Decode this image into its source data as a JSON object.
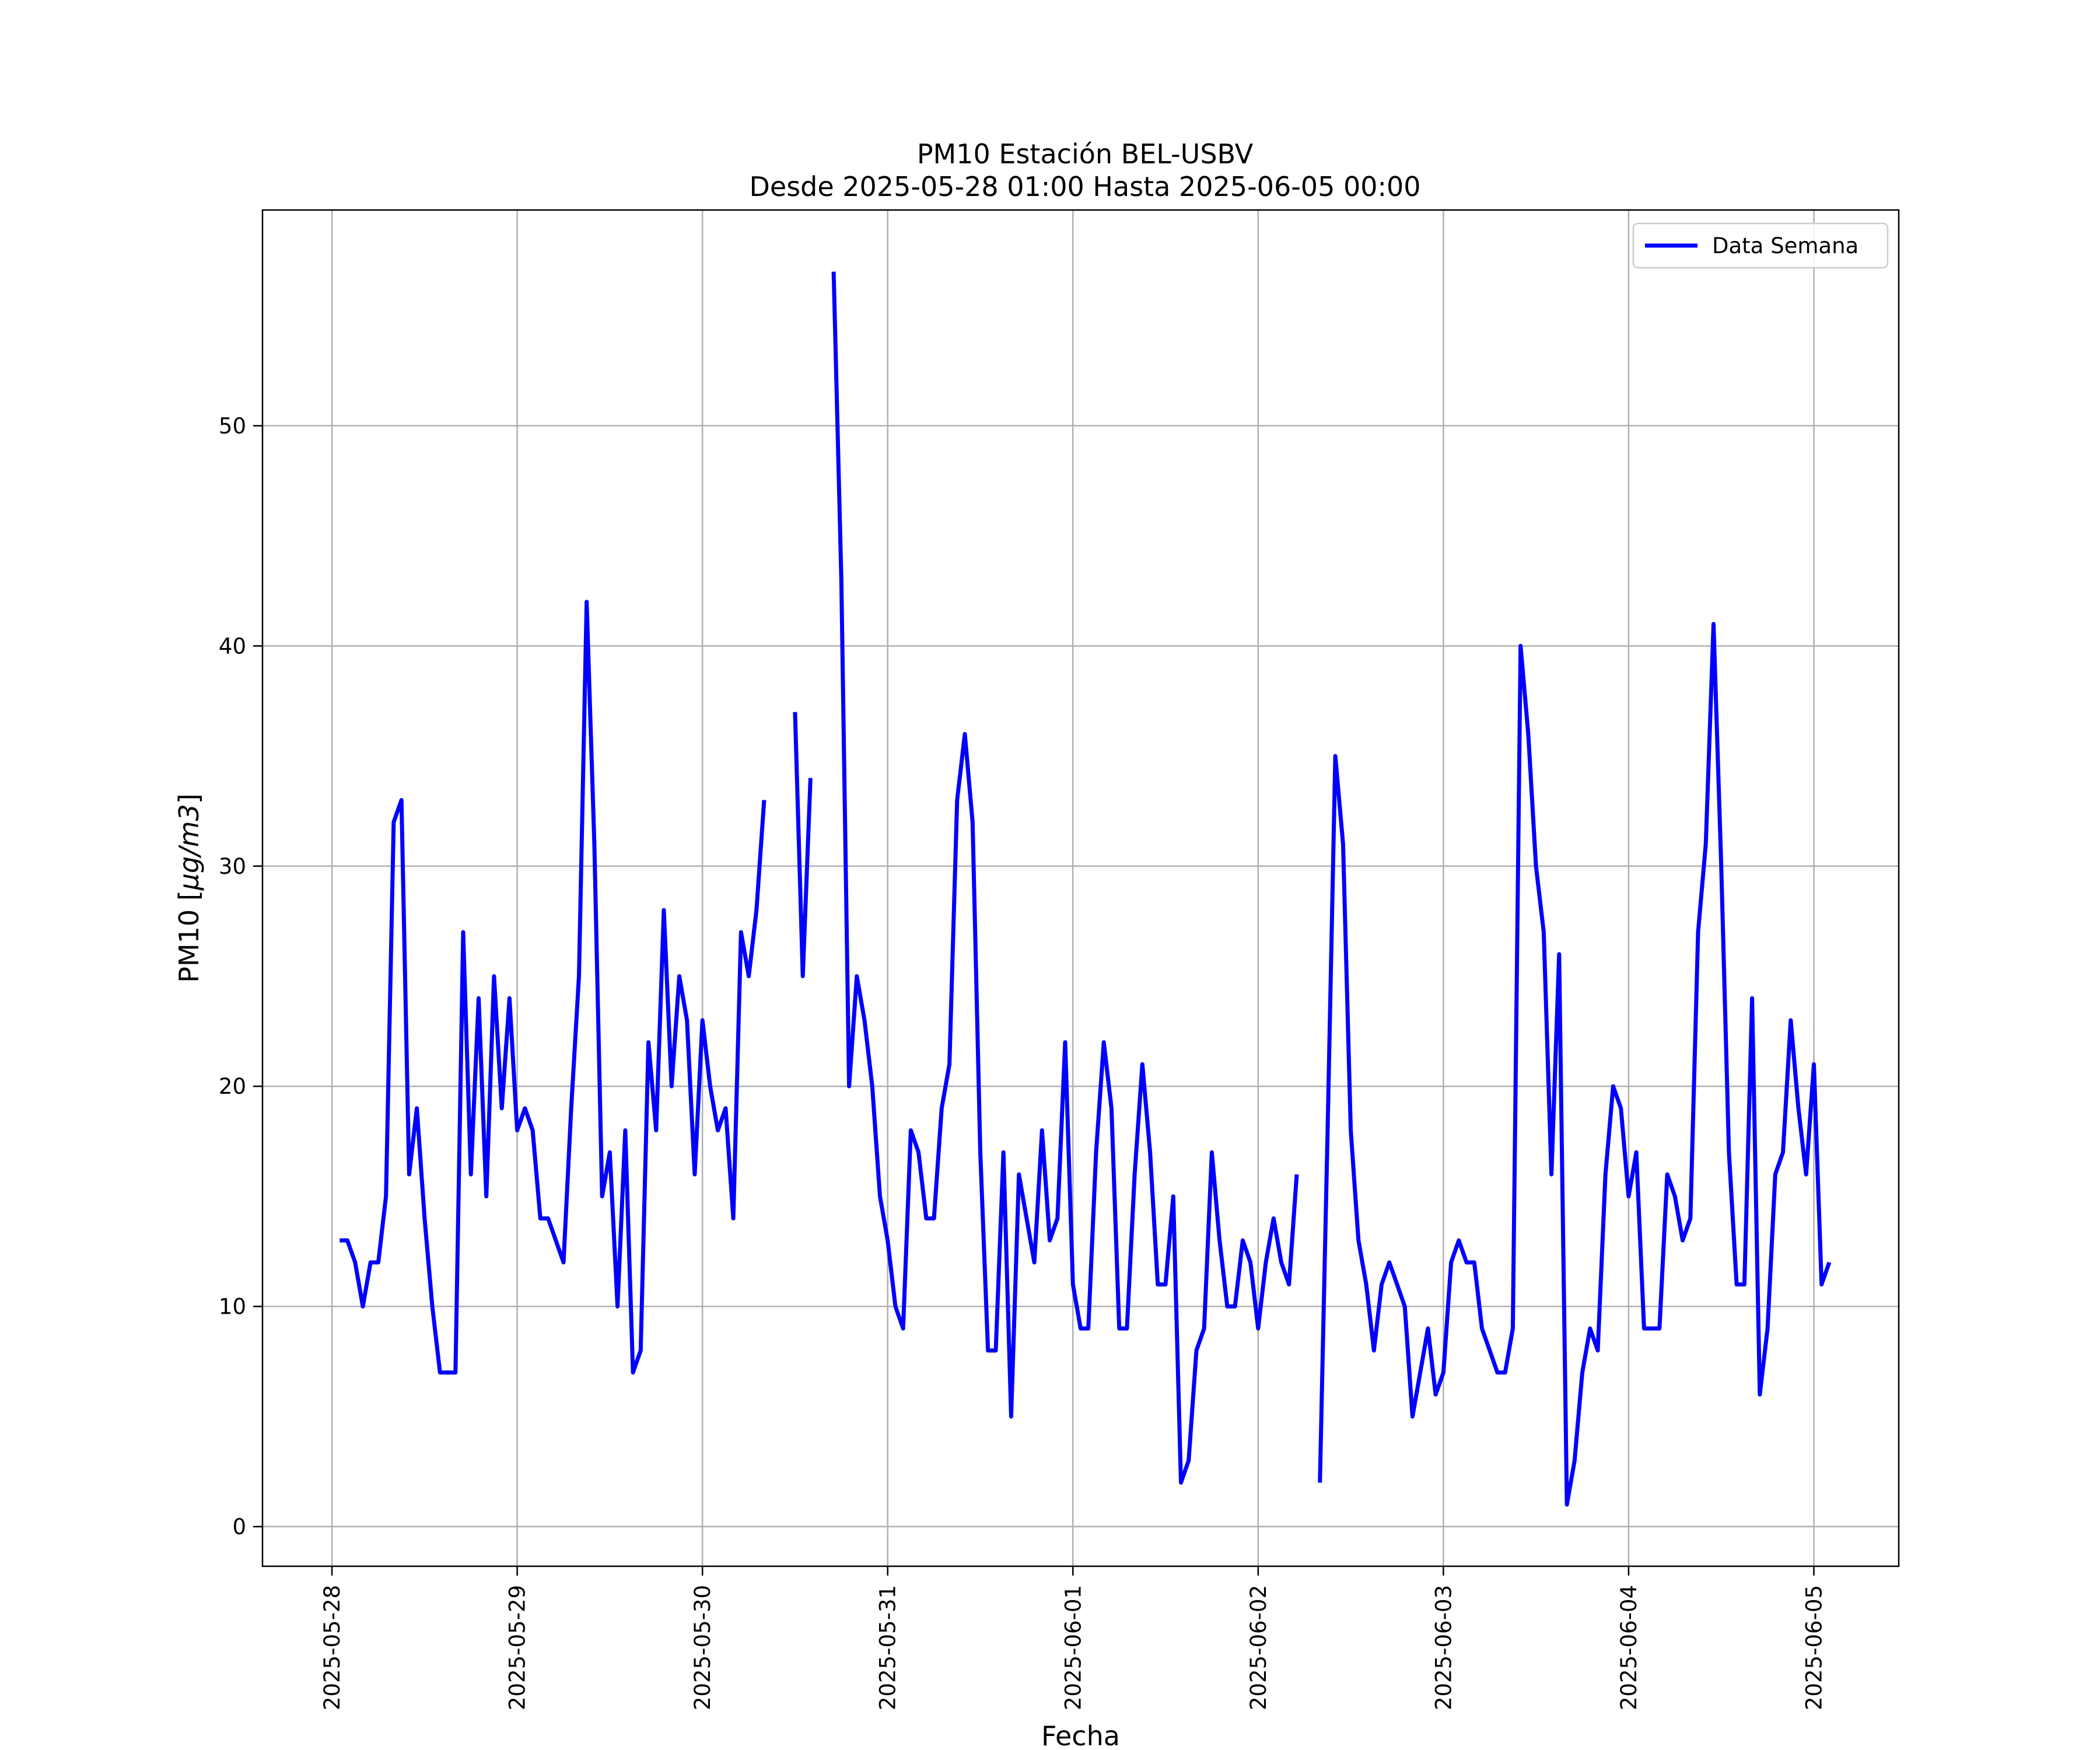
{
  "chart_data": {
    "type": "line",
    "title": "PM10 Estación BEL-USBV",
    "subtitle": "Desde 2025-05-28 01:00 Hasta 2025-06-05 00:00",
    "xlabel": "Fecha",
    "ylabel_main": "PM10 [",
    "ylabel_unit": "µg/m3",
    "ylabel_close": "]",
    "xlim": [
      "2025-05-27T15:00",
      "2025-06-05T11:00"
    ],
    "ylim": [
      -1.8,
      59.8
    ],
    "x_ticks": [
      "2025-05-28",
      "2025-05-29",
      "2025-05-30",
      "2025-05-31",
      "2025-06-01",
      "2025-06-02",
      "2025-06-03",
      "2025-06-04",
      "2025-06-05"
    ],
    "y_ticks": [
      0,
      10,
      20,
      30,
      40,
      50
    ],
    "grid": true,
    "legend_position": "top-right",
    "color": "#0000ff",
    "start": "2025-05-28T01:00",
    "step_hours": 1,
    "series": [
      {
        "name": "Data Semana",
        "values": [
          13,
          13,
          12,
          10,
          12,
          12,
          15,
          32,
          33,
          16,
          19,
          14,
          10,
          7,
          7,
          7,
          27,
          16,
          24,
          15,
          25,
          19,
          24,
          18,
          19,
          18,
          14,
          14,
          13,
          12,
          19,
          25,
          42,
          31,
          15,
          17,
          10,
          18,
          7,
          8,
          22,
          18,
          28,
          20,
          25,
          23,
          16,
          23,
          20,
          18,
          19,
          14,
          27,
          25,
          28,
          33,
          null,
          null,
          null,
          37,
          25,
          34,
          null,
          null,
          57,
          43,
          20,
          25,
          23,
          20,
          15,
          13,
          10,
          9,
          18,
          17,
          14,
          14,
          19,
          21,
          33,
          36,
          32,
          17,
          8,
          8,
          17,
          5,
          16,
          14,
          12,
          18,
          13,
          14,
          22,
          11,
          9,
          9,
          17,
          22,
          19,
          9,
          9,
          16,
          21,
          17,
          11,
          11,
          15,
          2,
          3,
          8,
          9,
          17,
          13,
          10,
          10,
          13,
          12,
          9,
          12,
          14,
          12,
          11,
          16,
          null,
          null,
          2,
          18,
          35,
          31,
          18,
          13,
          11,
          8,
          11,
          12,
          11,
          10,
          5,
          7,
          9,
          6,
          7,
          12,
          13,
          12,
          12,
          9,
          8,
          7,
          7,
          9,
          40,
          36,
          30,
          27,
          16,
          26,
          1,
          3,
          7,
          9,
          8,
          16,
          20,
          19,
          15,
          17,
          9,
          9,
          9,
          16,
          15,
          13,
          14,
          27,
          31,
          41,
          30,
          17,
          11,
          11,
          24,
          6,
          9,
          16,
          17,
          23,
          19,
          16,
          21,
          11,
          12
        ]
      }
    ]
  }
}
